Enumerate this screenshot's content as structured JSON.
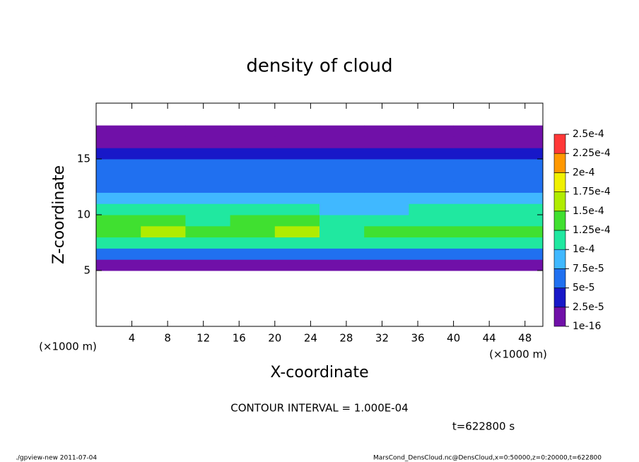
{
  "chart_data": {
    "type": "heatmap",
    "title": "density of cloud",
    "x_label": "X-coordinate",
    "y_label": "Z-coordinate",
    "x_unit": "(×1000 m)",
    "y_unit": "(×1000 m)",
    "annotation": "CONTOUR INTERVAL = 1.000E-04",
    "time_label": "t=622800 s",
    "footer_left": "./gpview-new  2011-07-04",
    "footer_right": "MarsCond_DensCloud.nc@DensCloud,x=0:50000,z=0:20000,t=622800",
    "xlim": [
      0,
      50
    ],
    "ylim": [
      0,
      20
    ],
    "xticks": [
      4,
      8,
      12,
      16,
      20,
      24,
      28,
      32,
      36,
      40,
      44,
      48
    ],
    "yticks": [
      5,
      10,
      15
    ],
    "x": [
      2.5,
      7.5,
      12.5,
      17.5,
      22.5,
      27.5,
      32.5,
      37.5,
      42.5,
      47.5
    ],
    "y": [
      0.5,
      1.5,
      2.5,
      3.5,
      4.5,
      5.5,
      6.5,
      7.5,
      8.5,
      9.5,
      10.5,
      11.5,
      12.5,
      13.5,
      14.5,
      15.5,
      16.5,
      17.5,
      18.5,
      19.5
    ],
    "values": [
      [
        null,
        null,
        null,
        null,
        null,
        null,
        null,
        null,
        null,
        null
      ],
      [
        null,
        null,
        null,
        null,
        null,
        null,
        null,
        null,
        null,
        null
      ],
      [
        null,
        null,
        null,
        null,
        null,
        null,
        null,
        null,
        null,
        null
      ],
      [
        null,
        null,
        null,
        null,
        null,
        null,
        null,
        null,
        null,
        null
      ],
      [
        null,
        null,
        null,
        null,
        null,
        null,
        null,
        null,
        null,
        null
      ],
      [
        1.5e-05,
        1.2e-05,
        1.8e-05,
        1.5e-05,
        1.2e-05,
        1e-05,
        1.5e-05,
        1.8e-05,
        1.2e-05,
        1.5e-05
      ],
      [
        6e-05,
        6e-05,
        5.5e-05,
        6e-05,
        6e-05,
        5e-05,
        5.5e-05,
        6e-05,
        5.5e-05,
        6e-05
      ],
      [
        0.000105,
        0.00011,
        0.000105,
        0.00011,
        0.000105,
        0.0001,
        0.000105,
        0.00011,
        0.000105,
        0.000105
      ],
      [
        0.00014,
        0.00015,
        0.00013,
        0.00014,
        0.00015,
        0.00012,
        0.00013,
        0.00014,
        0.00013,
        0.00013
      ],
      [
        0.00013,
        0.00014,
        0.00012,
        0.00013,
        0.00013,
        0.00011,
        0.00012,
        0.00012,
        0.00012,
        0.00012
      ],
      [
        0.0001,
        0.000105,
        0.0001,
        0.0001,
        0.0001,
        9.5e-05,
        9.5e-05,
        0.0001,
        0.0001,
        0.000105
      ],
      [
        8e-05,
        8.5e-05,
        8e-05,
        8e-05,
        8e-05,
        8e-05,
        7.5e-05,
        8e-05,
        8.5e-05,
        8.5e-05
      ],
      [
        7e-05,
        7e-05,
        7e-05,
        7e-05,
        6.5e-05,
        7e-05,
        6.5e-05,
        7e-05,
        7e-05,
        7e-05
      ],
      [
        6.5e-05,
        6.5e-05,
        6e-05,
        6.5e-05,
        6e-05,
        6.5e-05,
        5.5e-05,
        6e-05,
        6e-05,
        6.5e-05
      ],
      [
        6e-05,
        6e-05,
        6e-05,
        6e-05,
        6e-05,
        6e-05,
        5e-05,
        5e-05,
        5.5e-05,
        6e-05
      ],
      [
        4.5e-05,
        4.5e-05,
        4.5e-05,
        4.5e-05,
        4.5e-05,
        4.5e-05,
        4e-05,
        4e-05,
        4.5e-05,
        4.5e-05
      ],
      [
        2e-05,
        2e-05,
        2e-05,
        2e-05,
        2e-05,
        2e-05,
        2e-05,
        2e-05,
        2e-05,
        2e-05
      ],
      [
        5e-06,
        5e-06,
        5e-06,
        5e-06,
        5e-06,
        5e-06,
        5e-06,
        5e-06,
        5e-06,
        5e-06
      ],
      [
        null,
        null,
        null,
        null,
        null,
        null,
        null,
        null,
        null,
        null
      ],
      [
        null,
        null,
        null,
        null,
        null,
        null,
        null,
        null,
        null,
        null
      ]
    ],
    "levels": [
      1e-16,
      {
        "value": 2.5e-05,
        "label": "2.5e-5"
      },
      {
        "value": 5e-05,
        "label": "5e-5"
      },
      {
        "value": 7.5e-05,
        "label": "7.5e-5"
      },
      {
        "value": 0.0001,
        "label": "1e-4"
      },
      {
        "value": 0.000125,
        "label": "1.25e-4"
      },
      {
        "value": 0.00015,
        "label": "1.5e-4"
      },
      {
        "value": 0.000175,
        "label": "1.75e-4"
      },
      {
        "value": 0.0002,
        "label": "2e-4"
      },
      {
        "value": 0.000225,
        "label": "2.25e-4"
      },
      {
        "value": 0.00025,
        "label": "2.5e-4"
      }
    ],
    "colors": [
      "#7010a8",
      "#1818c8",
      "#2070f0",
      "#40b8ff",
      "#20e8a0",
      "#40e030",
      "#b0ec00",
      "#f0f000",
      "#ff9800",
      "#ff3838"
    ]
  }
}
